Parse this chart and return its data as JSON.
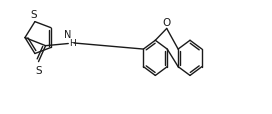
{
  "bg_color": "#ffffff",
  "line_color": "#1a1a1a",
  "line_width": 1.0,
  "figsize": [
    2.72,
    1.15
  ],
  "dpi": 100,
  "font_size": 6.5,
  "xlim": [
    0,
    10.5
  ],
  "ylim": [
    0.0,
    4.2
  ]
}
